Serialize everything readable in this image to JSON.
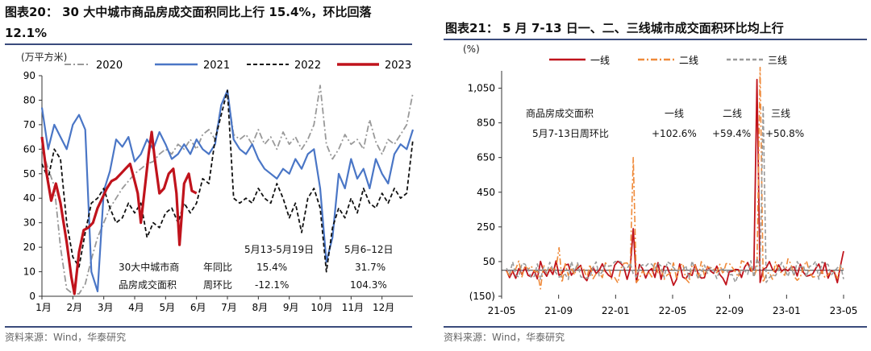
{
  "left": {
    "title": "图表20： 30 大中城市商品房成交面积同比上行 15.4%，环比回落12.1%",
    "source": "资料来源：Wind，华泰研究",
    "chart_data": {
      "type": "line",
      "ylabel": "(万平方米)",
      "ylim": [
        0,
        90
      ],
      "yticks": [
        0,
        10,
        20,
        30,
        40,
        50,
        60,
        70,
        80,
        90
      ],
      "x_months": [
        "1月",
        "2月",
        "3月",
        "4月",
        "5月",
        "6月",
        "7月",
        "8月",
        "9月",
        "10月",
        "11月",
        "12月"
      ],
      "legend": "top",
      "series": [
        {
          "name": "2020",
          "color": "#999999",
          "style": "dashdot",
          "points": [
            [
              1.0,
              60
            ],
            [
              1.2,
              52
            ],
            [
              1.4,
              45
            ],
            [
              1.6,
              20
            ],
            [
              1.8,
              3
            ],
            [
              2.0,
              1
            ],
            [
              2.2,
              1
            ],
            [
              2.4,
              5
            ],
            [
              2.6,
              15
            ],
            [
              2.8,
              24
            ],
            [
              3.0,
              30
            ],
            [
              3.2,
              36
            ],
            [
              3.4,
              40
            ],
            [
              3.6,
              44
            ],
            [
              3.8,
              47
            ],
            [
              4.0,
              50
            ],
            [
              4.2,
              52
            ],
            [
              4.4,
              54
            ],
            [
              4.6,
              55
            ],
            [
              4.8,
              58
            ],
            [
              5.0,
              60
            ],
            [
              5.2,
              58
            ],
            [
              5.4,
              62
            ],
            [
              5.6,
              60
            ],
            [
              5.8,
              64
            ],
            [
              6.0,
              60
            ],
            [
              6.2,
              66
            ],
            [
              6.4,
              68
            ],
            [
              6.6,
              64
            ],
            [
              6.8,
              78
            ],
            [
              7.0,
              83
            ],
            [
              7.2,
              66
            ],
            [
              7.4,
              64
            ],
            [
              7.6,
              66
            ],
            [
              7.8,
              62
            ],
            [
              8.0,
              68
            ],
            [
              8.2,
              62
            ],
            [
              8.4,
              65
            ],
            [
              8.6,
              60
            ],
            [
              8.8,
              67
            ],
            [
              9.0,
              62
            ],
            [
              9.2,
              65
            ],
            [
              9.4,
              60
            ],
            [
              9.6,
              64
            ],
            [
              9.8,
              70
            ],
            [
              10.0,
              86
            ],
            [
              10.2,
              62
            ],
            [
              10.4,
              56
            ],
            [
              10.6,
              60
            ],
            [
              10.8,
              66
            ],
            [
              11.0,
              62
            ],
            [
              11.2,
              64
            ],
            [
              11.4,
              60
            ],
            [
              11.6,
              72
            ],
            [
              11.8,
              63
            ],
            [
              12.0,
              58
            ],
            [
              12.2,
              64
            ],
            [
              12.4,
              62
            ],
            [
              12.6,
              66
            ],
            [
              12.8,
              70
            ],
            [
              13.0,
              83
            ]
          ]
        },
        {
          "name": "2021",
          "color": "#4a76c6",
          "style": "solid",
          "points": [
            [
              1.0,
              77
            ],
            [
              1.2,
              60
            ],
            [
              1.4,
              70
            ],
            [
              1.6,
              65
            ],
            [
              1.8,
              60
            ],
            [
              2.0,
              70
            ],
            [
              2.2,
              74
            ],
            [
              2.4,
              68
            ],
            [
              2.6,
              10
            ],
            [
              2.8,
              2
            ],
            [
              3.0,
              43
            ],
            [
              3.2,
              51
            ],
            [
              3.4,
              64
            ],
            [
              3.6,
              61
            ],
            [
              3.8,
              65
            ],
            [
              4.0,
              55
            ],
            [
              4.2,
              58
            ],
            [
              4.4,
              64
            ],
            [
              4.6,
              60
            ],
            [
              4.8,
              67
            ],
            [
              5.0,
              62
            ],
            [
              5.2,
              56
            ],
            [
              5.4,
              58
            ],
            [
              5.6,
              62
            ],
            [
              5.8,
              58
            ],
            [
              6.0,
              64
            ],
            [
              6.2,
              60
            ],
            [
              6.4,
              58
            ],
            [
              6.6,
              62
            ],
            [
              6.8,
              78
            ],
            [
              7.0,
              84
            ],
            [
              7.2,
              64
            ],
            [
              7.4,
              60
            ],
            [
              7.6,
              58
            ],
            [
              7.8,
              62
            ],
            [
              8.0,
              56
            ],
            [
              8.2,
              52
            ],
            [
              8.4,
              50
            ],
            [
              8.6,
              48
            ],
            [
              8.8,
              52
            ],
            [
              9.0,
              50
            ],
            [
              9.2,
              56
            ],
            [
              9.4,
              52
            ],
            [
              9.6,
              58
            ],
            [
              9.8,
              60
            ],
            [
              10.0,
              44
            ],
            [
              10.2,
              14
            ],
            [
              10.4,
              24
            ],
            [
              10.6,
              50
            ],
            [
              10.8,
              44
            ],
            [
              11.0,
              56
            ],
            [
              11.2,
              48
            ],
            [
              11.4,
              52
            ],
            [
              11.6,
              44
            ],
            [
              11.8,
              56
            ],
            [
              12.0,
              50
            ],
            [
              12.2,
              46
            ],
            [
              12.4,
              58
            ],
            [
              12.6,
              62
            ],
            [
              12.8,
              60
            ],
            [
              13.0,
              68
            ]
          ]
        },
        {
          "name": "2022",
          "color": "#111111",
          "style": "dashed",
          "points": [
            [
              1.0,
              54
            ],
            [
              1.2,
              48
            ],
            [
              1.4,
              60
            ],
            [
              1.6,
              56
            ],
            [
              1.8,
              30
            ],
            [
              2.0,
              16
            ],
            [
              2.2,
              12
            ],
            [
              2.4,
              26
            ],
            [
              2.6,
              38
            ],
            [
              2.8,
              40
            ],
            [
              3.0,
              44
            ],
            [
              3.2,
              36
            ],
            [
              3.4,
              30
            ],
            [
              3.6,
              32
            ],
            [
              3.8,
              38
            ],
            [
              4.0,
              34
            ],
            [
              4.2,
              38
            ],
            [
              4.4,
              24
            ],
            [
              4.6,
              30
            ],
            [
              4.8,
              28
            ],
            [
              5.0,
              34
            ],
            [
              5.2,
              36
            ],
            [
              5.4,
              30
            ],
            [
              5.6,
              38
            ],
            [
              5.8,
              34
            ],
            [
              6.0,
              38
            ],
            [
              6.2,
              48
            ],
            [
              6.4,
              46
            ],
            [
              6.6,
              64
            ],
            [
              6.8,
              74
            ],
            [
              7.0,
              84
            ],
            [
              7.2,
              40
            ],
            [
              7.4,
              38
            ],
            [
              7.6,
              40
            ],
            [
              7.8,
              38
            ],
            [
              8.0,
              44
            ],
            [
              8.2,
              40
            ],
            [
              8.4,
              38
            ],
            [
              8.6,
              46
            ],
            [
              8.8,
              40
            ],
            [
              9.0,
              32
            ],
            [
              9.2,
              38
            ],
            [
              9.4,
              26
            ],
            [
              9.6,
              40
            ],
            [
              9.8,
              44
            ],
            [
              10.0,
              36
            ],
            [
              10.2,
              10
            ],
            [
              10.4,
              28
            ],
            [
              10.6,
              36
            ],
            [
              10.8,
              32
            ],
            [
              11.0,
              40
            ],
            [
              11.2,
              34
            ],
            [
              11.4,
              44
            ],
            [
              11.6,
              38
            ],
            [
              11.8,
              36
            ],
            [
              12.0,
              42
            ],
            [
              12.2,
              38
            ],
            [
              12.4,
              44
            ],
            [
              12.6,
              40
            ],
            [
              12.8,
              42
            ],
            [
              13.0,
              64
            ]
          ]
        },
        {
          "name": "2023",
          "color": "#c0131c",
          "style": "solid-thick",
          "points": [
            [
              1.0,
              65
            ],
            [
              1.15,
              50
            ],
            [
              1.3,
              39
            ],
            [
              1.45,
              46
            ],
            [
              1.6,
              38
            ],
            [
              1.8,
              22
            ],
            [
              1.95,
              8
            ],
            [
              2.05,
              1
            ],
            [
              2.2,
              18
            ],
            [
              2.35,
              27
            ],
            [
              2.5,
              28
            ],
            [
              2.65,
              30
            ],
            [
              2.8,
              36
            ],
            [
              2.95,
              40
            ],
            [
              3.1,
              44
            ],
            [
              3.25,
              47
            ],
            [
              3.4,
              48
            ],
            [
              3.55,
              50
            ],
            [
              3.7,
              52
            ],
            [
              3.85,
              54
            ],
            [
              4.0,
              47
            ],
            [
              4.1,
              42
            ],
            [
              4.2,
              30
            ],
            [
              4.3,
              41
            ],
            [
              4.45,
              58
            ],
            [
              4.55,
              67
            ],
            [
              4.65,
              56
            ],
            [
              4.8,
              42
            ],
            [
              4.95,
              44
            ],
            [
              5.1,
              50
            ],
            [
              5.25,
              52
            ],
            [
              5.35,
              42
            ],
            [
              5.45,
              21
            ],
            [
              5.6,
              46
            ],
            [
              5.75,
              50
            ],
            [
              5.85,
              43
            ],
            [
              6.0,
              42
            ]
          ]
        }
      ]
    },
    "annotation": {
      "city_label_1": "30大中城市商",
      "city_label_2": "品房成交面积",
      "yoy_label": "年同比",
      "wow_label": "周环比",
      "period1": "5月13-5月19日",
      "period2": "5月6–12日",
      "p1_yoy": "15.4%",
      "p1_wow": "-12.1%",
      "p2_yoy": "31.7%",
      "p2_wow": "104.3%"
    }
  },
  "right": {
    "title": "图表21： 5 月 7-13 日一、二、三线城市成交面积环比均上行",
    "source": "资料来源：Wind，华泰研究",
    "chart_data": {
      "type": "line",
      "ylabel": "(%)",
      "ylim": [
        -150,
        1150
      ],
      "yticks": [
        -150,
        50,
        250,
        450,
        650,
        850,
        1050
      ],
      "ytick_labels": [
        "(150)",
        "50",
        "250",
        "450",
        "650",
        "850",
        "1,050"
      ],
      "xticks": [
        "21-05",
        "21-09",
        "22-01",
        "22-05",
        "22-09",
        "23-01",
        "23-05"
      ],
      "legend": "top",
      "series": [
        {
          "name": "一线",
          "color": "#c0131c",
          "style": "solid"
        },
        {
          "name": "二线",
          "color": "#ef8a3a",
          "style": "dashdot"
        },
        {
          "name": "三线",
          "color": "#9a9a9a",
          "style": "dashed"
        }
      ],
      "spikes": [
        {
          "series": "一线",
          "x": "22-02",
          "y": 240
        },
        {
          "series": "二线",
          "x": "22-02",
          "y": 650
        },
        {
          "series": "二线",
          "x": "23-01",
          "y": 1170
        },
        {
          "series": "一线",
          "x": "23-01",
          "y": 1100
        },
        {
          "series": "三线",
          "x": "23-01",
          "y": 950
        },
        {
          "series": "二线",
          "x": "21-09",
          "y": 130
        }
      ]
    },
    "annotation": {
      "row1_label": "商品房成交面积",
      "row2_label": "5月7-13日周环比",
      "col1": "一线",
      "col2": "二线",
      "col3": "三线",
      "v1": "+102.6%",
      "v2": "+59.4%",
      "v3": "+50.8%"
    }
  }
}
